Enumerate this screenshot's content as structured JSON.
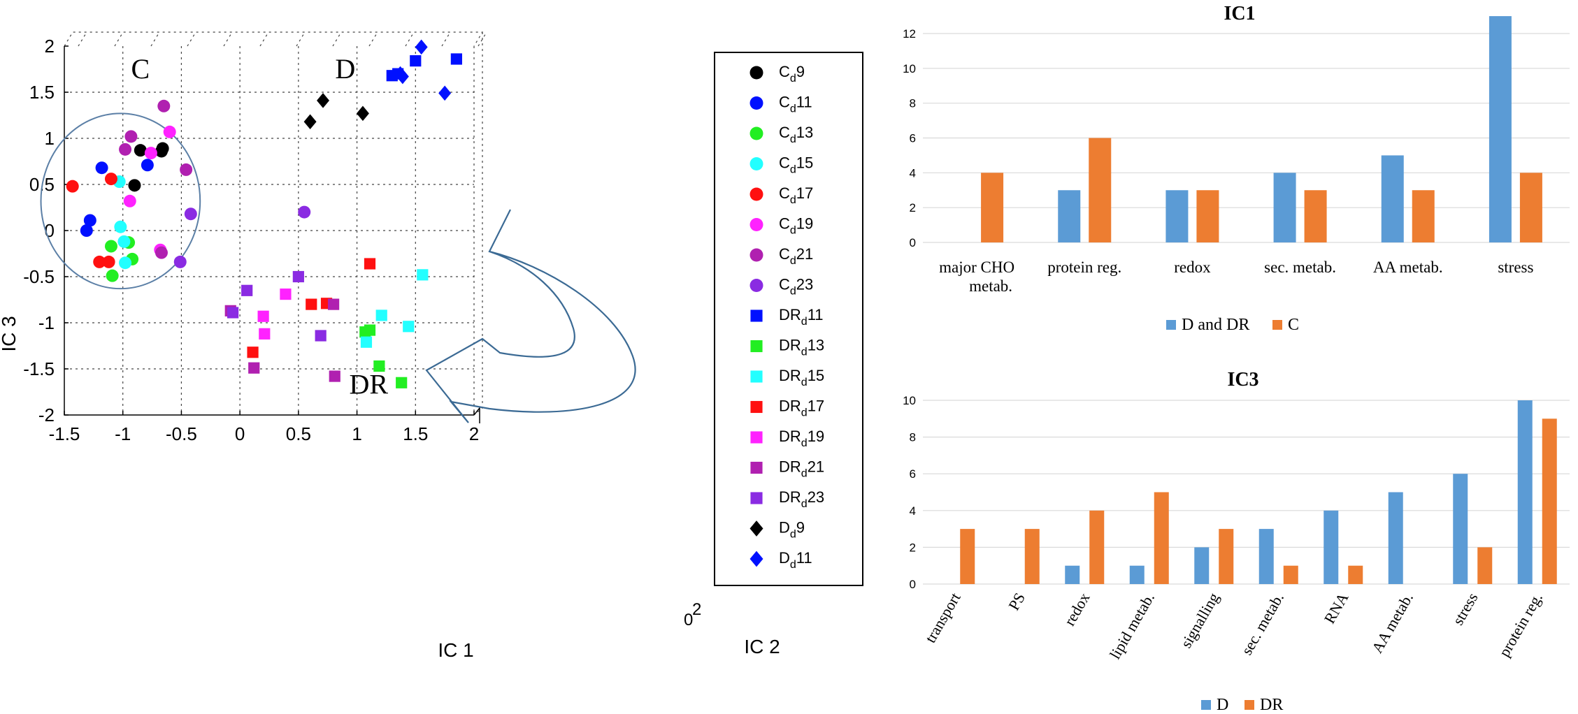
{
  "figure": {
    "scatter": {
      "type": "scatter",
      "xlabel": "IC 1",
      "ylabel": "IC 3",
      "zlabel": "IC 2",
      "xlim": [
        -1.5,
        2
      ],
      "ylim": [
        -2,
        2
      ],
      "xticks": [
        "-1.5",
        "-1",
        "-0.5",
        "0",
        "0.5",
        "1",
        "1.5",
        "2"
      ],
      "yticks": [
        "2",
        "1.5",
        "1",
        "0.5",
        "0",
        "-0.5",
        "-1",
        "-1.5",
        "-2"
      ],
      "ztick_labels": [
        "0",
        "2"
      ],
      "group_labels": [
        {
          "text": "C",
          "x": -0.85,
          "y": 1.65
        },
        {
          "text": "D",
          "x": 0.9,
          "y": 1.65
        },
        {
          "text": "DR",
          "x": 1.1,
          "y": -1.77
        }
      ],
      "ellipse": {
        "cx": -1.02,
        "cy": 0.32,
        "rx": 0.68,
        "ry": 0.95
      },
      "legend": [
        {
          "label_main": "C",
          "sub": "d",
          "suffix": "9",
          "color": "#000000",
          "marker": "circle"
        },
        {
          "label_main": "C",
          "sub": "d",
          "suffix": "11",
          "color": "#0010ff",
          "marker": "circle"
        },
        {
          "label_main": "C",
          "sub": "d",
          "suffix": "13",
          "color": "#22ee22",
          "marker": "circle"
        },
        {
          "label_main": "C",
          "sub": "d",
          "suffix": "15",
          "color": "#22ffff",
          "marker": "circle"
        },
        {
          "label_main": "C",
          "sub": "d",
          "suffix": "17",
          "color": "#ff1010",
          "marker": "circle"
        },
        {
          "label_main": "C",
          "sub": "d",
          "suffix": "19",
          "color": "#ff22ff",
          "marker": "circle"
        },
        {
          "label_main": "C",
          "sub": "d",
          "suffix": "21",
          "color": "#b020b0",
          "marker": "circle"
        },
        {
          "label_main": "C",
          "sub": "d",
          "suffix": "23",
          "color": "#8a2be2",
          "marker": "circle"
        },
        {
          "label_main": "DR",
          "sub": "d",
          "suffix": "11",
          "color": "#0010ff",
          "marker": "square"
        },
        {
          "label_main": "DR",
          "sub": "d",
          "suffix": "13",
          "color": "#22ee22",
          "marker": "square"
        },
        {
          "label_main": "DR",
          "sub": "d",
          "suffix": "15",
          "color": "#22ffff",
          "marker": "square"
        },
        {
          "label_main": "DR",
          "sub": "d",
          "suffix": "17",
          "color": "#ff1010",
          "marker": "square"
        },
        {
          "label_main": "DR",
          "sub": "d",
          "suffix": "19",
          "color": "#ff22ff",
          "marker": "square"
        },
        {
          "label_main": "DR",
          "sub": "d",
          "suffix": "21",
          "color": "#b020b0",
          "marker": "square"
        },
        {
          "label_main": "DR",
          "sub": "d",
          "suffix": "23",
          "color": "#8a2be2",
          "marker": "square"
        },
        {
          "label_main": "D",
          "sub": "d",
          "suffix": "9",
          "color": "#000000",
          "marker": "diamond"
        },
        {
          "label_main": "D",
          "sub": "d",
          "suffix": "11",
          "color": "#0010ff",
          "marker": "diamond"
        }
      ],
      "points": [
        {
          "x": -0.85,
          "y": 0.87,
          "color": "#000000",
          "marker": "circle"
        },
        {
          "x": -0.67,
          "y": 0.86,
          "color": "#000000",
          "marker": "circle"
        },
        {
          "x": -0.66,
          "y": 0.89,
          "color": "#000000",
          "marker": "circle"
        },
        {
          "x": -0.9,
          "y": 0.49,
          "color": "#000000",
          "marker": "circle"
        },
        {
          "x": -1.18,
          "y": 0.68,
          "color": "#0010ff",
          "marker": "circle"
        },
        {
          "x": -0.79,
          "y": 0.71,
          "color": "#0010ff",
          "marker": "circle"
        },
        {
          "x": -1.28,
          "y": 0.11,
          "color": "#0010ff",
          "marker": "circle"
        },
        {
          "x": -1.31,
          "y": 0.0,
          "color": "#0010ff",
          "marker": "circle"
        },
        {
          "x": -1.1,
          "y": -0.17,
          "color": "#22ee22",
          "marker": "circle"
        },
        {
          "x": -0.95,
          "y": -0.13,
          "color": "#22ee22",
          "marker": "circle"
        },
        {
          "x": -0.92,
          "y": -0.31,
          "color": "#22ee22",
          "marker": "circle"
        },
        {
          "x": -1.09,
          "y": -0.49,
          "color": "#22ee22",
          "marker": "circle"
        },
        {
          "x": -1.03,
          "y": 0.53,
          "color": "#22ffff",
          "marker": "circle"
        },
        {
          "x": -1.02,
          "y": 0.04,
          "color": "#22ffff",
          "marker": "circle"
        },
        {
          "x": -0.99,
          "y": -0.12,
          "color": "#22ffff",
          "marker": "circle"
        },
        {
          "x": -0.98,
          "y": -0.35,
          "color": "#22ffff",
          "marker": "circle"
        },
        {
          "x": -1.43,
          "y": 0.48,
          "color": "#ff1010",
          "marker": "circle"
        },
        {
          "x": -1.1,
          "y": 0.56,
          "color": "#ff1010",
          "marker": "circle"
        },
        {
          "x": -1.2,
          "y": -0.34,
          "color": "#ff1010",
          "marker": "circle"
        },
        {
          "x": -1.12,
          "y": -0.34,
          "color": "#ff1010",
          "marker": "circle"
        },
        {
          "x": -0.6,
          "y": 1.07,
          "color": "#ff22ff",
          "marker": "circle"
        },
        {
          "x": -0.76,
          "y": 0.84,
          "color": "#ff22ff",
          "marker": "circle"
        },
        {
          "x": -0.94,
          "y": 0.32,
          "color": "#ff22ff",
          "marker": "circle"
        },
        {
          "x": -0.68,
          "y": -0.21,
          "color": "#ff22ff",
          "marker": "circle"
        },
        {
          "x": -0.65,
          "y": 1.35,
          "color": "#b020b0",
          "marker": "circle"
        },
        {
          "x": -0.93,
          "y": 1.02,
          "color": "#b020b0",
          "marker": "circle"
        },
        {
          "x": -0.98,
          "y": 0.88,
          "color": "#b020b0",
          "marker": "circle"
        },
        {
          "x": -0.46,
          "y": 0.66,
          "color": "#b020b0",
          "marker": "circle"
        },
        {
          "x": -0.67,
          "y": -0.24,
          "color": "#b020b0",
          "marker": "circle"
        },
        {
          "x": -0.42,
          "y": 0.18,
          "color": "#8a2be2",
          "marker": "circle"
        },
        {
          "x": -0.51,
          "y": -0.34,
          "color": "#8a2be2",
          "marker": "circle"
        },
        {
          "x": 0.55,
          "y": 0.2,
          "color": "#8a2be2",
          "marker": "circle"
        },
        {
          "x": 1.3,
          "y": 1.68,
          "color": "#0010ff",
          "marker": "square"
        },
        {
          "x": 1.35,
          "y": 1.7,
          "color": "#0010ff",
          "marker": "square"
        },
        {
          "x": 1.5,
          "y": 1.84,
          "color": "#0010ff",
          "marker": "square"
        },
        {
          "x": 1.85,
          "y": 1.86,
          "color": "#0010ff",
          "marker": "square"
        },
        {
          "x": 1.07,
          "y": -1.1,
          "color": "#22ee22",
          "marker": "square"
        },
        {
          "x": 1.11,
          "y": -1.08,
          "color": "#22ee22",
          "marker": "square"
        },
        {
          "x": 1.19,
          "y": -1.47,
          "color": "#22ee22",
          "marker": "square"
        },
        {
          "x": 1.38,
          "y": -1.65,
          "color": "#22ee22",
          "marker": "square"
        },
        {
          "x": 1.21,
          "y": -0.92,
          "color": "#22ffff",
          "marker": "square"
        },
        {
          "x": 1.44,
          "y": -1.04,
          "color": "#22ffff",
          "marker": "square"
        },
        {
          "x": 1.08,
          "y": -1.21,
          "color": "#22ffff",
          "marker": "square"
        },
        {
          "x": 1.56,
          "y": -0.48,
          "color": "#22ffff",
          "marker": "square"
        },
        {
          "x": 1.11,
          "y": -0.36,
          "color": "#ff1010",
          "marker": "square"
        },
        {
          "x": 0.61,
          "y": -0.8,
          "color": "#ff1010",
          "marker": "square"
        },
        {
          "x": 0.74,
          "y": -0.79,
          "color": "#ff1010",
          "marker": "square"
        },
        {
          "x": 0.11,
          "y": -1.32,
          "color": "#ff1010",
          "marker": "square"
        },
        {
          "x": 0.39,
          "y": -0.69,
          "color": "#ff22ff",
          "marker": "square"
        },
        {
          "x": 0.2,
          "y": -0.93,
          "color": "#ff22ff",
          "marker": "square"
        },
        {
          "x": 0.21,
          "y": -1.12,
          "color": "#ff22ff",
          "marker": "square"
        },
        {
          "x": 0.8,
          "y": -0.8,
          "color": "#b020b0",
          "marker": "square"
        },
        {
          "x": 0.81,
          "y": -1.58,
          "color": "#b020b0",
          "marker": "square"
        },
        {
          "x": 0.12,
          "y": -1.49,
          "color": "#b020b0",
          "marker": "square"
        },
        {
          "x": -0.08,
          "y": -0.87,
          "color": "#b020b0",
          "marker": "square"
        },
        {
          "x": -0.06,
          "y": -0.89,
          "color": "#8a2be2",
          "marker": "square"
        },
        {
          "x": 0.06,
          "y": -0.65,
          "color": "#8a2be2",
          "marker": "square"
        },
        {
          "x": 0.5,
          "y": -0.5,
          "color": "#8a2be2",
          "marker": "square"
        },
        {
          "x": 0.69,
          "y": -1.14,
          "color": "#8a2be2",
          "marker": "square"
        },
        {
          "x": 0.6,
          "y": 1.18,
          "color": "#000000",
          "marker": "diamond"
        },
        {
          "x": 0.71,
          "y": 1.41,
          "color": "#000000",
          "marker": "diamond"
        },
        {
          "x": 1.05,
          "y": 1.27,
          "color": "#000000",
          "marker": "diamond"
        },
        {
          "x": 1.37,
          "y": 1.7,
          "color": "#0010ff",
          "marker": "diamond"
        },
        {
          "x": 1.39,
          "y": 1.67,
          "color": "#0010ff",
          "marker": "diamond"
        },
        {
          "x": 1.55,
          "y": 1.99,
          "color": "#0010ff",
          "marker": "diamond"
        },
        {
          "x": 1.75,
          "y": 1.49,
          "color": "#0010ff",
          "marker": "diamond"
        }
      ]
    },
    "ic1_bar": {
      "type": "bar",
      "title": "IC1",
      "categories": [
        "major CHO metab.",
        "protein reg.",
        "redox",
        "sec. metab.",
        "AA metab.",
        "stress"
      ],
      "category_lines": [
        [
          "major CHO",
          "metab."
        ],
        [
          "protein reg."
        ],
        [
          "redox"
        ],
        [
          "sec. metab."
        ],
        [
          "AA metab."
        ],
        [
          "stress"
        ]
      ],
      "ylim": [
        0,
        12
      ],
      "yticks": [
        "0",
        "2",
        "4",
        "6",
        "8",
        "10",
        "12"
      ],
      "series": [
        {
          "name": "D and DR",
          "color": "#5b9bd5",
          "values": [
            0,
            3,
            3,
            4,
            5,
            13
          ]
        },
        {
          "name": "C",
          "color": "#ed7d31",
          "values": [
            4,
            6,
            3,
            3,
            3,
            4
          ]
        }
      ]
    },
    "ic3_bar": {
      "type": "bar",
      "title": "IC3",
      "categories": [
        "transport",
        "PS",
        "redox",
        "lipid metab.",
        "signalling",
        "sec. metab.",
        "RNA",
        "AA metab.",
        "stress",
        "protein reg."
      ],
      "ylim": [
        0,
        10
      ],
      "yticks": [
        "0",
        "2",
        "4",
        "6",
        "8",
        "10"
      ],
      "series": [
        {
          "name": "D",
          "color": "#5b9bd5",
          "values": [
            0,
            0,
            1,
            1,
            2,
            3,
            4,
            5,
            6,
            10
          ]
        },
        {
          "name": "DR",
          "color": "#ed7d31",
          "values": [
            3,
            3,
            4,
            5,
            3,
            1,
            1,
            0,
            2,
            9
          ]
        }
      ]
    }
  }
}
